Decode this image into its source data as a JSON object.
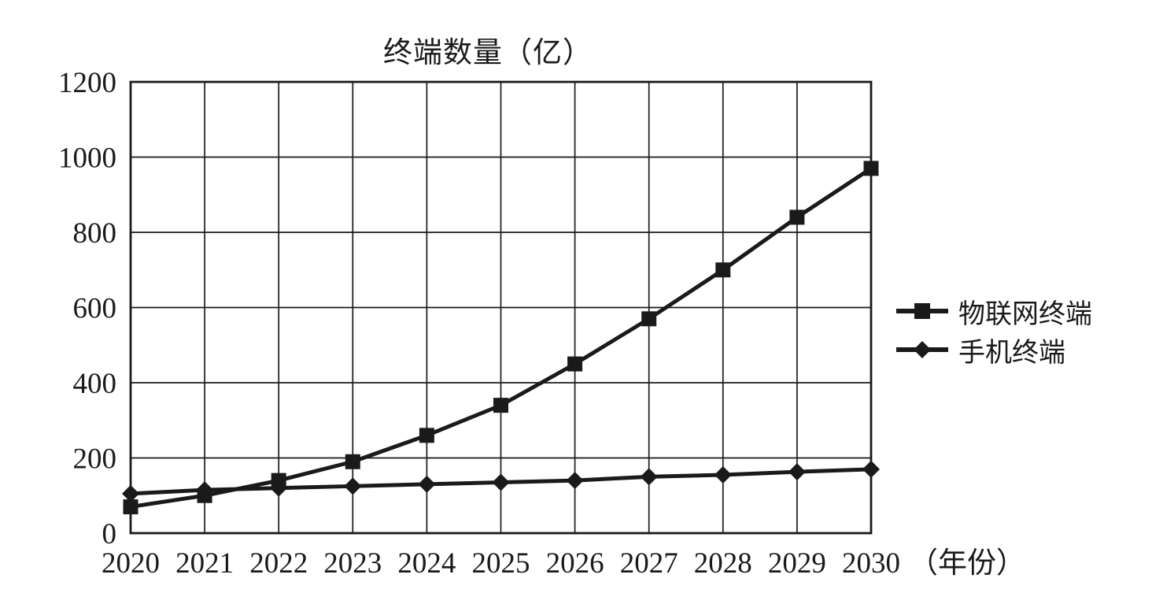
{
  "title": "终端数量（亿）",
  "legend": {
    "items": [
      {
        "label": "物联网终端",
        "marker": "square"
      },
      {
        "label": "手机终端",
        "marker": "diamond"
      }
    ]
  },
  "colors": {
    "ink": "#1a1a1a",
    "background": "#ffffff"
  },
  "chart_data": {
    "type": "line",
    "title": "终端数量（亿）",
    "xlabel": "（年份）",
    "ylabel": "终端数量（亿）",
    "x": [
      2020,
      2021,
      2022,
      2023,
      2024,
      2025,
      2026,
      2027,
      2028,
      2029,
      2030
    ],
    "series": [
      {
        "name": "物联网终端",
        "marker": "square",
        "values": [
          70,
          100,
          140,
          190,
          260,
          340,
          450,
          570,
          700,
          840,
          970
        ]
      },
      {
        "name": "手机终端",
        "marker": "diamond",
        "values": [
          105,
          115,
          120,
          125,
          130,
          135,
          140,
          150,
          155,
          163,
          170
        ]
      }
    ],
    "ylim": [
      0,
      1200
    ],
    "y_ticks": [
      0,
      200,
      400,
      600,
      800,
      1000,
      1200
    ],
    "grid": true,
    "legend_position": "right-center"
  }
}
